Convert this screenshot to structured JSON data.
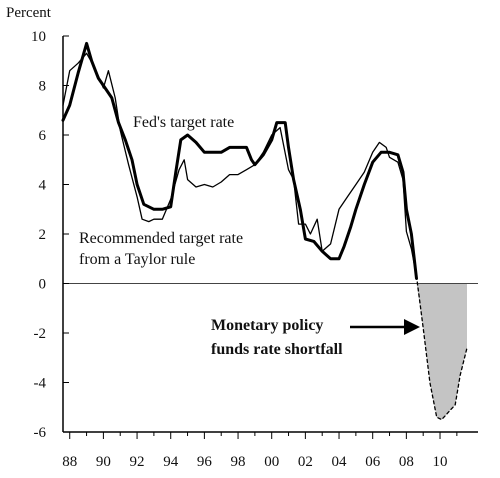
{
  "chart_data": {
    "type": "line",
    "ylabel": "Percent",
    "ylim": [
      -6,
      10
    ],
    "xlim": [
      1987.6,
      2011.9
    ],
    "y_ticks": [
      "-6",
      "-4",
      "-2",
      "0",
      "2",
      "4",
      "6",
      "8",
      "10"
    ],
    "x_tick_labels": [
      "88",
      "90",
      "92",
      "94",
      "96",
      "98",
      "00",
      "02",
      "04",
      "06",
      "08",
      "10"
    ],
    "grid": false,
    "annotations": {
      "fed": "Fed's target rate",
      "taylor_line1": "Recommended target rate",
      "taylor_line2": "from a Taylor rule",
      "shortfall_line1": "Monetary policy",
      "shortfall_line2": "funds rate shortfall"
    },
    "series": [
      {
        "key": "fed",
        "style": "thick",
        "x": [
          1987.6,
          1988.0,
          1988.5,
          1989.0,
          1989.3,
          1989.7,
          1990.0,
          1990.5,
          1990.9,
          1991.3,
          1991.7,
          1992.0,
          1992.4,
          1993.0,
          1993.5,
          1994.0,
          1994.3,
          1994.6,
          1995.0,
          1995.5,
          1996.0,
          1996.5,
          1997.0,
          1997.5,
          1998.0,
          1998.5,
          1998.8,
          1999.0,
          1999.5,
          2000.0,
          2000.3,
          2000.8,
          2001.0,
          2001.3,
          2001.7,
          2002.0,
          2002.5,
          2003.0,
          2003.5,
          2004.0,
          2004.3,
          2004.7,
          2005.0,
          2005.5,
          2006.0,
          2006.5,
          2007.0,
          2007.5,
          2007.8,
          2008.0,
          2008.3,
          2008.6
        ],
        "y": [
          6.6,
          7.2,
          8.5,
          9.7,
          9.0,
          8.3,
          8.0,
          7.5,
          6.5,
          5.8,
          5.0,
          4.0,
          3.2,
          3.0,
          3.0,
          3.1,
          4.5,
          5.8,
          6.0,
          5.7,
          5.3,
          5.3,
          5.3,
          5.5,
          5.5,
          5.5,
          5.0,
          4.8,
          5.2,
          5.8,
          6.5,
          6.5,
          5.5,
          4.2,
          3.0,
          1.8,
          1.7,
          1.3,
          1.0,
          1.0,
          1.5,
          2.3,
          3.0,
          4.0,
          4.9,
          5.3,
          5.3,
          5.2,
          4.5,
          3.0,
          2.0,
          0.2
        ]
      },
      {
        "key": "taylor",
        "style": "thin",
        "x": [
          1987.6,
          1988.0,
          1988.5,
          1989.0,
          1989.5,
          1990.0,
          1990.3,
          1990.7,
          1991.0,
          1991.5,
          1992.0,
          1992.3,
          1992.7,
          1993.0,
          1993.5,
          1994.0,
          1994.5,
          1994.8,
          1995.0,
          1995.5,
          1996.0,
          1996.5,
          1997.0,
          1997.5,
          1998.0,
          1998.5,
          1999.0,
          1999.5,
          2000.0,
          2000.5,
          2001.0,
          2001.3,
          2001.6,
          2002.0,
          2002.3,
          2002.7,
          2003.0,
          2003.5,
          2004.0,
          2004.5,
          2005.0,
          2005.5,
          2006.0,
          2006.4,
          2006.8,
          2007.0,
          2007.5,
          2007.8,
          2008.0,
          2008.3,
          2008.6
        ],
        "y": [
          7.2,
          8.6,
          8.9,
          9.3,
          8.7,
          7.9,
          8.6,
          7.5,
          6.2,
          4.8,
          3.5,
          2.6,
          2.5,
          2.6,
          2.6,
          3.4,
          4.6,
          5.0,
          4.2,
          3.9,
          4.0,
          3.9,
          4.1,
          4.4,
          4.4,
          4.6,
          4.8,
          5.3,
          6.0,
          6.3,
          4.6,
          4.2,
          2.4,
          2.4,
          2.0,
          2.6,
          1.3,
          1.6,
          3.0,
          3.5,
          4.0,
          4.5,
          5.3,
          5.7,
          5.5,
          5.1,
          4.9,
          4.2,
          2.1,
          1.4,
          0.3
        ]
      },
      {
        "key": "taylor_projection",
        "style": "dashed",
        "x": [
          2008.6,
          2009.0,
          2009.4,
          2009.8,
          2010.1,
          2010.5,
          2010.9,
          2011.2,
          2011.6
        ],
        "y": [
          0.3,
          -1.8,
          -4.0,
          -5.4,
          -5.5,
          -5.2,
          -4.9,
          -3.7,
          -2.6
        ]
      }
    ],
    "shortfall_area": {
      "x": [
        2008.6,
        2009.0,
        2009.4,
        2009.8,
        2010.1,
        2010.5,
        2010.9,
        2011.2,
        2011.6
      ],
      "y": [
        0.0,
        -1.8,
        -4.0,
        -5.4,
        -5.5,
        -5.2,
        -4.9,
        -3.7,
        -2.6
      ],
      "x_end": 2011.6,
      "fill": "#c4c4c4"
    }
  }
}
